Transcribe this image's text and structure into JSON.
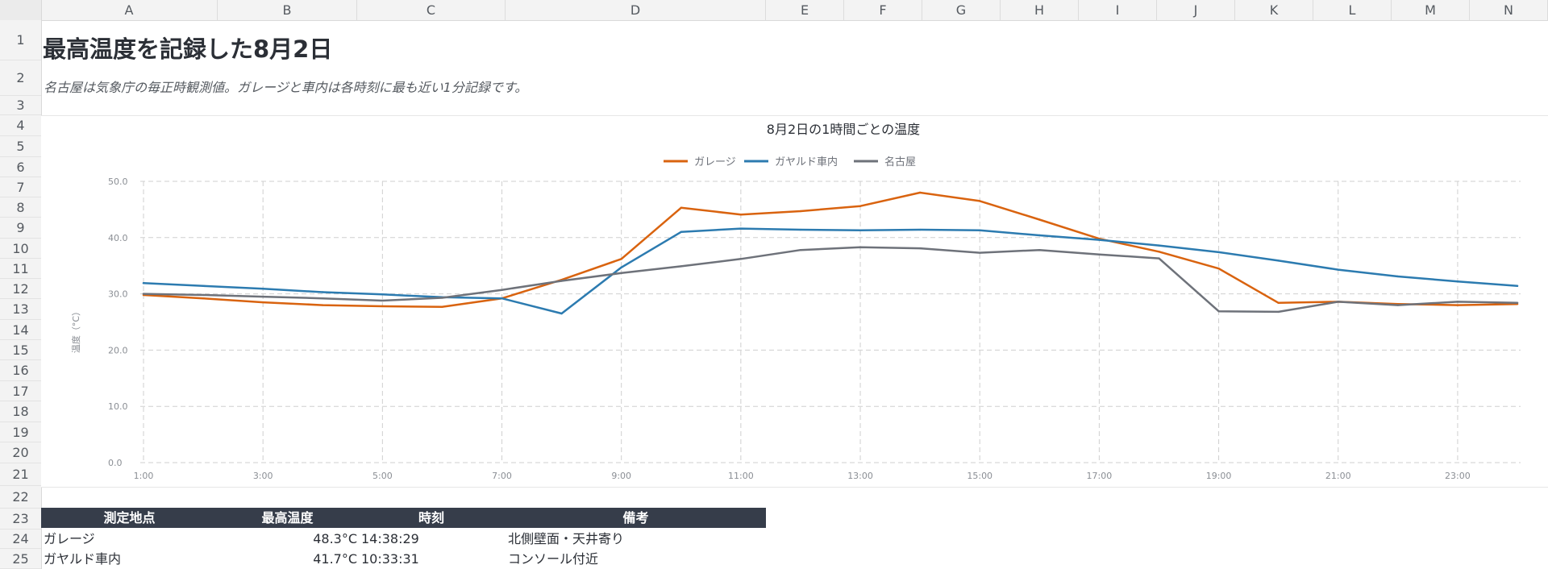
{
  "columns": [
    "A",
    "B",
    "C",
    "D",
    "E",
    "F",
    "G",
    "H",
    "I",
    "J",
    "K",
    "L",
    "M",
    "N"
  ],
  "rows": [
    "1",
    "2",
    "3",
    "4",
    "5",
    "6",
    "7",
    "8",
    "9",
    "10",
    "11",
    "12",
    "13",
    "14",
    "15",
    "16",
    "17",
    "18",
    "19",
    "20",
    "21",
    "22",
    "23",
    "24",
    "25"
  ],
  "sheet": {
    "title": "最高温度を記録した8月2日",
    "subtitle": "名古屋は気象庁の毎正時観測値。ガレージと車内は各時刻に最も近い1分記録です。"
  },
  "chart_data": {
    "type": "line",
    "title": "8月2日の1時間ごとの温度",
    "ylabel": "温度（°C）",
    "xlabel": "",
    "ylim": [
      0,
      50
    ],
    "yticks": [
      "0.0",
      "10.0",
      "20.0",
      "30.0",
      "40.0",
      "50.0"
    ],
    "x": [
      "1:00",
      "2:00",
      "3:00",
      "4:00",
      "5:00",
      "6:00",
      "7:00",
      "8:00",
      "9:00",
      "10:00",
      "11:00",
      "12:00",
      "13:00",
      "14:00",
      "15:00",
      "16:00",
      "17:00",
      "18:00",
      "19:00",
      "20:00",
      "21:00",
      "22:00",
      "23:00",
      "24:00"
    ],
    "xtick_labels": [
      "1:00",
      "3:00",
      "5:00",
      "7:00",
      "9:00",
      "11:00",
      "13:00",
      "15:00",
      "17:00",
      "19:00",
      "21:00",
      "23:00"
    ],
    "grid": true,
    "legend_position": "top",
    "series": [
      {
        "name": "ガレージ",
        "color": "#d9630f",
        "values": [
          29.8,
          29.2,
          28.5,
          28.0,
          27.8,
          27.7,
          29.2,
          32.5,
          36.2,
          45.3,
          44.1,
          44.7,
          45.6,
          48.0,
          46.5,
          43.2,
          39.8,
          37.5,
          34.5,
          28.4,
          28.6,
          28.2,
          28.0,
          28.2
        ]
      },
      {
        "name": "ガヤルド車内",
        "color": "#2c7bb0",
        "values": [
          31.9,
          31.4,
          30.9,
          30.3,
          29.9,
          29.4,
          29.2,
          26.5,
          34.7,
          41.0,
          41.6,
          41.4,
          41.3,
          41.4,
          41.3,
          40.4,
          39.6,
          38.6,
          37.4,
          35.9,
          34.3,
          33.1,
          32.2,
          31.4
        ]
      },
      {
        "name": "名古屋",
        "color": "#6e727a",
        "values": [
          30.0,
          29.8,
          29.5,
          29.2,
          28.8,
          29.3,
          30.7,
          32.3,
          33.7,
          34.9,
          36.2,
          37.8,
          38.3,
          38.1,
          37.3,
          37.8,
          37.0,
          36.3,
          26.9,
          26.8,
          28.6,
          28.0,
          28.6,
          28.4
        ]
      }
    ]
  },
  "table": {
    "headers": [
      "測定地点",
      "最高温度",
      "時刻",
      "備考"
    ],
    "rows": [
      {
        "location": "ガレージ",
        "max": "48.3°C",
        "time": "14:38:29",
        "note": "北側壁面・天井寄り"
      },
      {
        "location": "ガヤルド車内",
        "max": "41.7°C",
        "time": "10:33:31",
        "note": "コンソール付近"
      }
    ]
  }
}
